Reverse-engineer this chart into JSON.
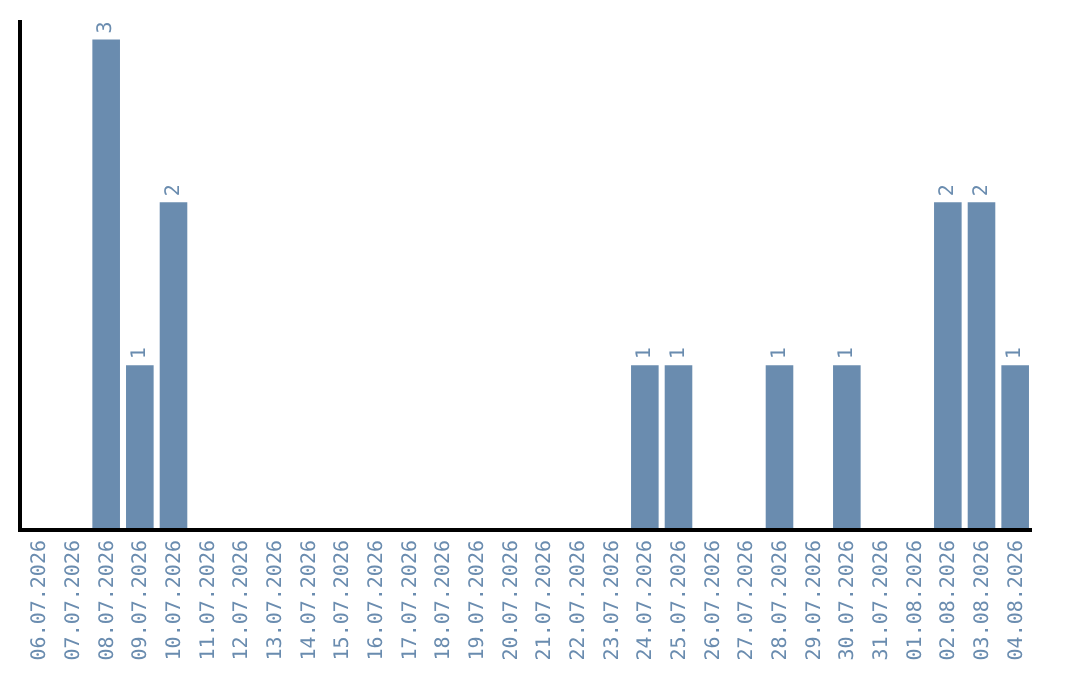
{
  "chart_data": {
    "type": "bar",
    "categories": [
      "06.07.2026",
      "07.07.2026",
      "08.07.2026",
      "09.07.2026",
      "10.07.2026",
      "11.07.2026",
      "12.07.2026",
      "13.07.2026",
      "14.07.2026",
      "15.07.2026",
      "16.07.2026",
      "17.07.2026",
      "18.07.2026",
      "19.07.2026",
      "20.07.2026",
      "21.07.2026",
      "22.07.2026",
      "23.07.2026",
      "24.07.2026",
      "25.07.2026",
      "26.07.2026",
      "27.07.2026",
      "28.07.2026",
      "29.07.2026",
      "30.07.2026",
      "31.07.2026",
      "01.08.2026",
      "02.08.2026",
      "03.08.2026",
      "04.08.2026"
    ],
    "values": [
      0,
      0,
      3,
      1,
      2,
      0,
      0,
      0,
      0,
      0,
      0,
      0,
      0,
      0,
      0,
      0,
      0,
      0,
      1,
      1,
      0,
      0,
      1,
      0,
      1,
      0,
      0,
      2,
      2,
      1
    ],
    "value_labels": [
      null,
      null,
      "3",
      "1",
      "2",
      null,
      null,
      null,
      null,
      null,
      null,
      null,
      null,
      null,
      null,
      null,
      null,
      null,
      "1",
      "1",
      null,
      null,
      "1",
      null,
      "1",
      null,
      null,
      "2",
      "2",
      "1"
    ],
    "color": "#6a8caf",
    "ylim": [
      0,
      3.12
    ],
    "tick_labels": "x"
  }
}
